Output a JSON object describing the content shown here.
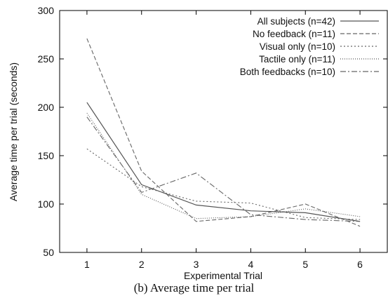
{
  "caption": "(b)  Average time per trial",
  "chart_data": {
    "type": "line",
    "title": "",
    "xlabel": "Experimental Trial",
    "ylabel": "Average time per trial (seconds)",
    "x": [
      1,
      2,
      3,
      4,
      5,
      6
    ],
    "xlim": [
      0.5,
      6.5
    ],
    "ylim": [
      50,
      300
    ],
    "xticks": [
      1,
      2,
      3,
      4,
      5,
      6
    ],
    "yticks": [
      50,
      100,
      150,
      200,
      250,
      300
    ],
    "grid": false,
    "legend_position": "top-right",
    "series": [
      {
        "name": "All subjects (n=42)",
        "values": [
          205,
          120,
          99,
          93,
          91,
          82
        ],
        "style": "solid",
        "color": "#555555"
      },
      {
        "name": "No feedback (n=11)",
        "values": [
          271,
          134,
          82,
          87,
          100,
          77
        ],
        "style": "dashed",
        "color": "#666666"
      },
      {
        "name": "Visual only (n=10)",
        "values": [
          157,
          118,
          103,
          101,
          86,
          84
        ],
        "style": "dotted",
        "color": "#666666"
      },
      {
        "name": "Tactile only (n=11)",
        "values": [
          194,
          110,
          85,
          87,
          95,
          87
        ],
        "style": "fine-dotted",
        "color": "#555555"
      },
      {
        "name": "Both feedbacks (n=10)",
        "values": [
          190,
          112,
          132,
          89,
          84,
          82
        ],
        "style": "dash-dot",
        "color": "#666666"
      }
    ]
  }
}
